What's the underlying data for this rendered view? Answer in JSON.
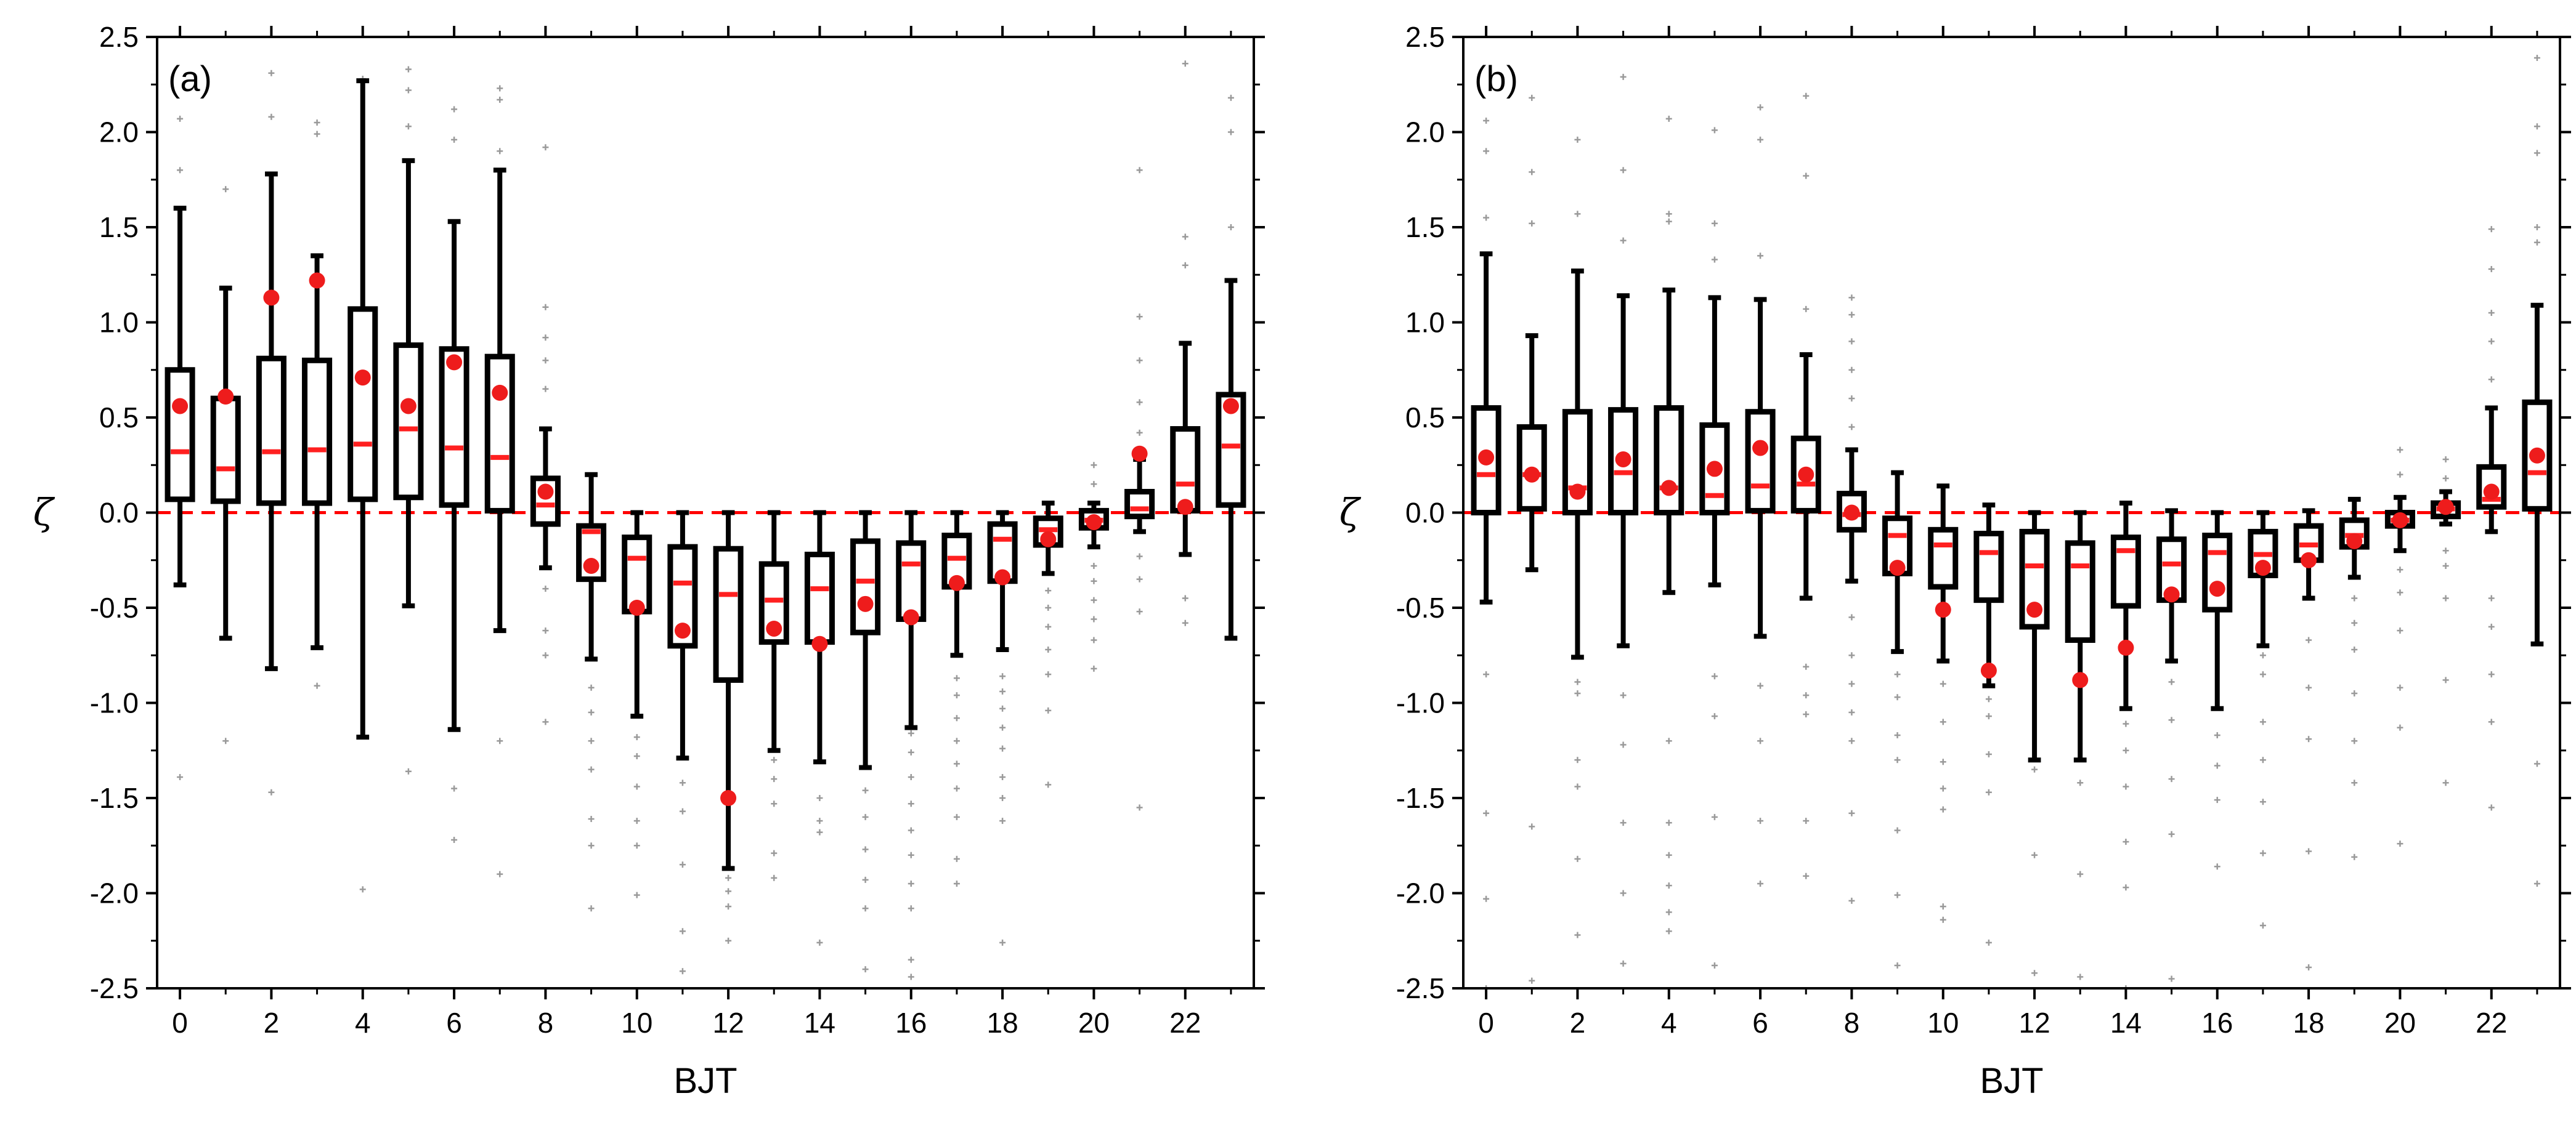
{
  "colors": {
    "median": "#ff2020",
    "mean": "#ee1c1c",
    "zero_line": "#ff0000",
    "box": "#000000",
    "outlier": "#9a9a9a"
  },
  "chart_data": [
    {
      "type": "box",
      "panel_label": "(a)",
      "xlabel": "BJT",
      "ylabel": "ζ",
      "xlim": [
        -0.5,
        23.5
      ],
      "ylim": [
        -2.5,
        2.5
      ],
      "xticks": [
        0,
        2,
        4,
        6,
        8,
        10,
        12,
        14,
        16,
        18,
        20,
        22
      ],
      "xtick_labels": [
        "0",
        "2",
        "4",
        "6",
        "8",
        "10",
        "12",
        "14",
        "16",
        "18",
        "20",
        "22"
      ],
      "yticks": [
        2.5,
        2.0,
        1.5,
        1.0,
        0.5,
        0.0,
        -0.5,
        -1.0,
        -1.5,
        -2.0,
        -2.5
      ],
      "ytick_labels": [
        "2.5",
        "2.0",
        "1.5",
        "1.0",
        "0.5",
        "0.0",
        "-0.5",
        "-1.0",
        "-1.5",
        "-2.0",
        "-2.5"
      ],
      "reference_line": 0.0,
      "hours": [
        0,
        1,
        2,
        3,
        4,
        5,
        6,
        7,
        8,
        9,
        10,
        11,
        12,
        13,
        14,
        15,
        16,
        17,
        18,
        19,
        20,
        21,
        22,
        23
      ],
      "whisker_low": [
        -0.38,
        -0.66,
        -0.82,
        -0.71,
        -1.18,
        -0.49,
        -1.14,
        -0.62,
        -0.29,
        -0.77,
        -1.07,
        -1.29,
        -1.87,
        -1.25,
        -1.31,
        -1.34,
        -1.13,
        -0.75,
        -0.72,
        -0.32,
        -0.18,
        -0.1,
        -0.22,
        -0.66
      ],
      "q1": [
        0.07,
        0.06,
        0.05,
        0.05,
        0.07,
        0.08,
        0.04,
        0.01,
        -0.06,
        -0.35,
        -0.52,
        -0.7,
        -0.88,
        -0.68,
        -0.68,
        -0.63,
        -0.56,
        -0.39,
        -0.36,
        -0.17,
        -0.08,
        -0.02,
        0.01,
        0.04
      ],
      "median": [
        0.32,
        0.23,
        0.32,
        0.33,
        0.36,
        0.44,
        0.34,
        0.29,
        0.04,
        -0.1,
        -0.24,
        -0.37,
        -0.43,
        -0.46,
        -0.4,
        -0.36,
        -0.27,
        -0.24,
        -0.14,
        -0.09,
        -0.04,
        0.02,
        0.15,
        0.35
      ],
      "q3": [
        0.75,
        0.6,
        0.81,
        0.8,
        1.07,
        0.88,
        0.86,
        0.82,
        0.18,
        -0.07,
        -0.13,
        -0.18,
        -0.19,
        -0.27,
        -0.22,
        -0.15,
        -0.16,
        -0.12,
        -0.06,
        -0.03,
        0.01,
        0.11,
        0.44,
        0.62
      ],
      "whisker_high": [
        1.6,
        1.18,
        1.78,
        1.35,
        2.27,
        1.85,
        1.53,
        1.8,
        0.44,
        0.2,
        0.0,
        0.0,
        0.0,
        0.0,
        0.0,
        0.0,
        0.0,
        0.0,
        0.0,
        0.05,
        0.05,
        0.28,
        0.89,
        1.22
      ],
      "mean": [
        0.56,
        0.61,
        1.13,
        1.22,
        0.71,
        0.56,
        0.79,
        0.63,
        0.11,
        -0.28,
        -0.5,
        -0.62,
        -1.5,
        -0.61,
        -0.69,
        -0.48,
        -0.55,
        -0.37,
        -0.34,
        -0.14,
        -0.05,
        0.31,
        0.03,
        0.56
      ],
      "outliers": [
        [
          -1.39,
          1.8,
          2.07
        ],
        [
          -1.2,
          1.7
        ],
        [
          -1.47,
          2.08,
          2.31
        ],
        [
          -0.91,
          1.99,
          2.05
        ],
        [
          -1.98,
          2.28
        ],
        [
          -1.36,
          2.03,
          2.22,
          2.33
        ],
        [
          -1.72,
          -1.45,
          1.96,
          2.12
        ],
        [
          -1.9,
          -1.2,
          1.9,
          2.17,
          2.23
        ],
        [
          -1.1,
          -0.75,
          -0.62,
          -0.4,
          0.65,
          0.8,
          0.92,
          1.08,
          1.92
        ],
        [
          -2.08,
          -1.75,
          -1.61,
          -1.35,
          -1.2,
          -1.05,
          -0.92
        ],
        [
          -2.01,
          -1.75,
          -1.62,
          -1.44,
          -1.28,
          -1.18
        ],
        [
          -2.41,
          -2.2,
          -1.85,
          -1.57,
          -1.42
        ],
        [
          -2.25,
          -2.07,
          -1.99,
          -1.92
        ],
        [
          -1.92,
          -1.79,
          -1.53,
          -1.4,
          -1.3
        ],
        [
          -2.26,
          -1.68,
          -1.62,
          -1.5
        ],
        [
          -2.4,
          -2.08,
          -1.93,
          -1.77,
          -1.6,
          -1.46
        ],
        [
          -2.44,
          -2.35,
          -2.08,
          -1.95,
          -1.8,
          -1.67,
          -1.53,
          -1.39,
          -1.26,
          -1.16
        ],
        [
          -1.95,
          -1.82,
          -1.6,
          -1.45,
          -1.32,
          -1.2,
          -1.08,
          -0.96,
          -0.87
        ],
        [
          -2.26,
          -1.62,
          -1.5,
          -1.39,
          -1.24,
          -1.13,
          -1.03,
          -0.94,
          -0.86
        ],
        [
          -1.43,
          -1.04,
          -0.85,
          -0.72,
          -0.6,
          -0.5,
          -0.41
        ],
        [
          -0.82,
          -0.67,
          -0.56,
          -0.46,
          -0.36,
          -0.28,
          0.15,
          0.25
        ],
        [
          -1.55,
          -0.52,
          -0.35,
          -0.23,
          0.42,
          0.58,
          0.8,
          1.03,
          1.8
        ],
        [
          -0.58,
          -0.45,
          1.3,
          1.45,
          2.36
        ],
        [
          1.5,
          2.0,
          2.18
        ]
      ]
    },
    {
      "type": "box",
      "panel_label": "(b)",
      "xlabel": "BJT",
      "ylabel": "ζ",
      "xlim": [
        -0.5,
        23.5
      ],
      "ylim": [
        -2.5,
        2.5
      ],
      "xticks": [
        0,
        2,
        4,
        6,
        8,
        10,
        12,
        14,
        16,
        18,
        20,
        22
      ],
      "xtick_labels": [
        "0",
        "2",
        "4",
        "6",
        "8",
        "10",
        "12",
        "14",
        "16",
        "18",
        "20",
        "22"
      ],
      "yticks": [
        2.5,
        2.0,
        1.5,
        1.0,
        0.5,
        0.0,
        -0.5,
        -1.0,
        -1.5,
        -2.0,
        -2.5
      ],
      "ytick_labels": [
        "2.5",
        "2.0",
        "1.5",
        "1.0",
        "0.5",
        "0.0",
        "-0.5",
        "-1.0",
        "-1.5",
        "-2.0",
        "-2.5"
      ],
      "reference_line": 0.0,
      "hours": [
        0,
        1,
        2,
        3,
        4,
        5,
        6,
        7,
        8,
        9,
        10,
        11,
        12,
        13,
        14,
        15,
        16,
        17,
        18,
        19,
        20,
        21,
        22,
        23
      ],
      "whisker_low": [
        -0.47,
        -0.3,
        -0.76,
        -0.7,
        -0.42,
        -0.38,
        -0.65,
        -0.45,
        -0.36,
        -0.73,
        -0.78,
        -0.91,
        -1.3,
        -1.3,
        -1.03,
        -0.78,
        -1.03,
        -0.7,
        -0.45,
        -0.34,
        -0.2,
        -0.06,
        -0.1,
        -0.69
      ],
      "q1": [
        0.0,
        0.02,
        0.0,
        0.0,
        0.0,
        0.0,
        0.01,
        0.01,
        -0.09,
        -0.32,
        -0.39,
        -0.46,
        -0.6,
        -0.67,
        -0.49,
        -0.46,
        -0.51,
        -0.33,
        -0.25,
        -0.18,
        -0.07,
        -0.02,
        0.03,
        0.02
      ],
      "median": [
        0.2,
        0.2,
        0.13,
        0.21,
        0.13,
        0.09,
        0.14,
        0.15,
        -0.01,
        -0.12,
        -0.17,
        -0.21,
        -0.28,
        -0.28,
        -0.2,
        -0.27,
        -0.21,
        -0.22,
        -0.17,
        -0.12,
        -0.04,
        0.02,
        0.07,
        0.21
      ],
      "q3": [
        0.55,
        0.45,
        0.53,
        0.54,
        0.55,
        0.46,
        0.53,
        0.39,
        0.1,
        -0.03,
        -0.09,
        -0.11,
        -0.1,
        -0.16,
        -0.13,
        -0.14,
        -0.12,
        -0.1,
        -0.07,
        -0.04,
        0.0,
        0.05,
        0.24,
        0.58
      ],
      "whisker_high": [
        1.36,
        0.93,
        1.27,
        1.14,
        1.17,
        1.13,
        1.12,
        0.83,
        0.33,
        0.21,
        0.14,
        0.04,
        0.0,
        0.0,
        0.05,
        0.01,
        0.0,
        0.0,
        0.01,
        0.07,
        0.08,
        0.11,
        0.55,
        1.09
      ],
      "mean": [
        0.29,
        0.2,
        0.11,
        0.28,
        0.13,
        0.23,
        0.34,
        0.2,
        0.0,
        -0.29,
        -0.51,
        -0.83,
        -0.51,
        -0.88,
        -0.71,
        -0.43,
        -0.4,
        -0.29,
        -0.25,
        -0.15,
        -0.04,
        0.03,
        0.11,
        0.3
      ],
      "outliers": [
        [
          -2.5,
          -2.03,
          -1.58,
          -0.85,
          1.55,
          1.9,
          2.06
        ],
        [
          -2.46,
          -1.65,
          1.52,
          1.79,
          2.18
        ],
        [
          -2.22,
          -1.82,
          -1.44,
          -1.3,
          -0.95,
          -0.89,
          1.57,
          1.96
        ],
        [
          -2.37,
          -2.0,
          -1.63,
          -1.22,
          -0.96,
          1.43,
          1.8,
          2.29
        ],
        [
          -2.2,
          -2.1,
          -1.96,
          -1.8,
          -1.63,
          -1.2,
          1.53,
          1.57,
          2.07
        ],
        [
          -2.38,
          -1.6,
          -1.07,
          -0.86,
          1.33,
          1.52,
          2.01
        ],
        [
          -1.95,
          -1.62,
          -1.2,
          -0.91,
          1.35,
          1.96,
          2.13
        ],
        [
          -1.91,
          -1.62,
          -1.06,
          -0.96,
          -0.81,
          1.07,
          1.77,
          2.19
        ],
        [
          -2.04,
          -1.58,
          -1.2,
          -1.05,
          -0.9,
          -0.75,
          -0.55,
          0.45,
          0.6,
          0.75,
          0.9,
          1.04,
          1.13
        ],
        [
          -2.38,
          -2.01,
          -1.67,
          -1.3,
          -1.17,
          -0.97,
          -0.85
        ],
        [
          -2.14,
          -2.07,
          -1.56,
          -1.45,
          -1.31,
          -1.1,
          -0.9
        ],
        [
          -2.26,
          -1.47,
          -1.27,
          -1.07,
          -0.98
        ],
        [
          -2.42,
          -1.8,
          -1.35
        ],
        [
          -2.44,
          -1.9,
          -1.42
        ],
        [
          -2.5,
          -1.97,
          -1.73,
          -1.44,
          -1.25,
          -1.11
        ],
        [
          -2.45,
          -1.69,
          -1.4,
          -1.09,
          -0.89
        ],
        [
          -1.86,
          -1.51,
          -1.33,
          -1.17
        ],
        [
          -2.17,
          -1.79,
          -1.52,
          -1.3,
          -1.1,
          -0.85,
          -0.75
        ],
        [
          -2.39,
          -1.78,
          -1.19,
          -0.92,
          -0.67
        ],
        [
          -1.81,
          -1.42,
          -1.2,
          -0.95,
          -0.72,
          -0.58,
          -0.45
        ],
        [
          -1.74,
          -1.13,
          -0.92,
          -0.62,
          -0.42,
          -0.3,
          0.2,
          0.33
        ],
        [
          -1.42,
          -0.88,
          -0.45,
          -0.28,
          -0.2,
          0.18,
          0.28
        ],
        [
          -1.55,
          -1.1,
          -0.85,
          -0.6,
          -0.45,
          0.7,
          0.9,
          1.05,
          1.28,
          1.49
        ],
        [
          -1.95,
          -1.32,
          1.42,
          1.5,
          1.89,
          2.03,
          2.39
        ]
      ]
    }
  ]
}
